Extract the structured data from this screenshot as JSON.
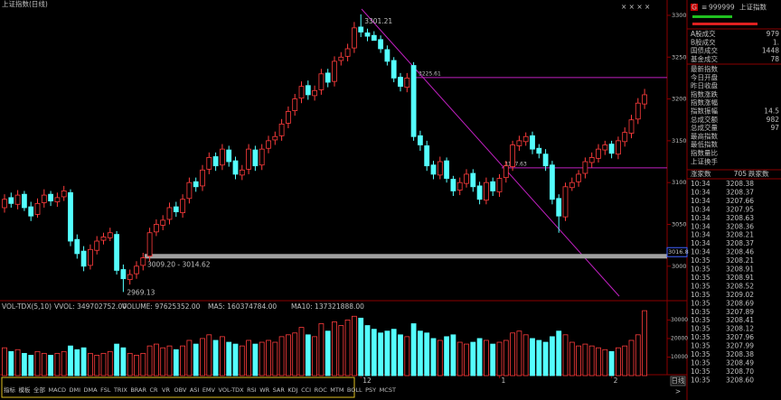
{
  "window_title": "上证指数(日线)",
  "chart_data": [
    {
      "type": "candlestick",
      "ylim": [
        2962,
        3314
      ],
      "yticks": [
        3300,
        3250,
        3200,
        3150,
        3100,
        3050,
        3000
      ],
      "categories": [
        null,
        null,
        null,
        null,
        null,
        null,
        null,
        null,
        null,
        null,
        null,
        null,
        null,
        null,
        null,
        null,
        null,
        null,
        null,
        null,
        null,
        null,
        null,
        null,
        null,
        null,
        null,
        null,
        null,
        null,
        null,
        null,
        null,
        null,
        null,
        null,
        null,
        null,
        null,
        null,
        null,
        null,
        null,
        null,
        null,
        null,
        null,
        null,
        null,
        null,
        null,
        null,
        null,
        null,
        "12",
        null,
        null,
        null,
        null,
        null,
        null,
        null,
        null,
        null,
        null,
        null,
        null,
        null,
        null,
        null,
        null,
        null,
        null,
        null,
        null,
        "1",
        null,
        null,
        null,
        null,
        null,
        null,
        null,
        null,
        null,
        null,
        null,
        null,
        null,
        null,
        null,
        null,
        "2",
        null,
        null,
        null,
        null,
        null
      ],
      "open": [
        3070,
        3082,
        3074,
        3086,
        3071,
        3062,
        3076,
        3086,
        3077,
        3083,
        3088,
        3032,
        3018,
        3001,
        3019,
        3031,
        3034,
        3038,
        2996,
        2984,
        2991,
        3001,
        3012,
        3041,
        3049,
        3056,
        3071,
        3064,
        3081,
        3101,
        3096,
        3116,
        3131,
        3121,
        3139,
        3126,
        3109,
        3116,
        3139,
        3121,
        3141,
        3151,
        3156,
        3171,
        3186,
        3201,
        3216,
        3204,
        3211,
        3231,
        3221,
        3246,
        3251,
        3261,
        3286,
        3279,
        3276,
        3271,
        3259,
        3246,
        3226,
        3214,
        3240,
        3156,
        3144,
        3121,
        3109,
        3126,
        3104,
        3091,
        3099,
        3111,
        3096,
        3079,
        3101,
        3089,
        3106,
        3119,
        3144,
        3149,
        3156,
        3141,
        3134,
        3121,
        3081,
        3059,
        3094,
        3101,
        3111,
        3124,
        3129,
        3139,
        3146,
        3134,
        3149,
        3159,
        3176,
        3194
      ],
      "high": [
        3086,
        3088,
        3091,
        3090,
        3077,
        3081,
        3092,
        3090,
        3088,
        3096,
        3092,
        3038,
        3024,
        3026,
        3036,
        3040,
        3046,
        3042,
        3002,
        2996,
        3006,
        3016,
        3046,
        3056,
        3061,
        3076,
        3077,
        3086,
        3106,
        3106,
        3121,
        3136,
        3136,
        3146,
        3144,
        3131,
        3121,
        3146,
        3144,
        3146,
        3156,
        3161,
        3176,
        3191,
        3206,
        3221,
        3222,
        3216,
        3236,
        3236,
        3251,
        3256,
        3266,
        3292,
        3301.21,
        3284,
        3281,
        3276,
        3264,
        3250,
        3231,
        3231,
        3244,
        3162,
        3150,
        3126,
        3131,
        3130,
        3108,
        3106,
        3116,
        3116,
        3101,
        3106,
        3106,
        3110,
        3126,
        3150,
        3156,
        3160,
        3161,
        3146,
        3140,
        3126,
        3086,
        3100,
        3106,
        3115,
        3130,
        3136,
        3146,
        3150,
        3150,
        3155,
        3166,
        3181,
        3201,
        3212
      ],
      "low": [
        3064,
        3070,
        3068,
        3066,
        3054,
        3058,
        3070,
        3072,
        3071,
        3078,
        3024,
        3009,
        2994,
        2996,
        3014,
        3026,
        3030,
        2990,
        2969.13,
        2978,
        2985,
        2995,
        3006,
        3036,
        3043,
        3050,
        3059,
        3058,
        3075,
        3089,
        3090,
        3110,
        3114,
        3115,
        3119,
        3104,
        3103,
        3110,
        3114,
        3115,
        3135,
        3145,
        3150,
        3165,
        3180,
        3195,
        3199,
        3198,
        3205,
        3214,
        3215,
        3240,
        3245,
        3255,
        3274,
        3269,
        3270,
        3255,
        3240,
        3220,
        3209,
        3208,
        3150,
        3138,
        3114,
        3104,
        3104,
        3100,
        3084,
        3085,
        3094,
        3089,
        3074,
        3074,
        3084,
        3083,
        3100,
        3114,
        3138,
        3144,
        3134,
        3129,
        3114,
        3074,
        3040,
        3054,
        3090,
        3095,
        3105,
        3118,
        3124,
        3133,
        3129,
        3128,
        3143,
        3153,
        3170,
        3188
      ],
      "close": [
        3080,
        3075,
        3085,
        3070,
        3060,
        3075,
        3085,
        3078,
        3082,
        3090,
        3030,
        3015,
        3000,
        3020,
        3030,
        3035,
        3040,
        2995,
        2985,
        2990,
        3000,
        3010,
        3040,
        3050,
        3055,
        3070,
        3065,
        3080,
        3100,
        3095,
        3115,
        3130,
        3120,
        3140,
        3125,
        3110,
        3115,
        3140,
        3120,
        3140,
        3150,
        3155,
        3170,
        3185,
        3200,
        3215,
        3205,
        3210,
        3230,
        3220,
        3245,
        3250,
        3260,
        3285,
        3280,
        3275,
        3270,
        3260,
        3245,
        3225,
        3215,
        3225,
        3155,
        3145,
        3120,
        3110,
        3125,
        3105,
        3090,
        3100,
        3110,
        3095,
        3080,
        3100,
        3090,
        3105,
        3120,
        3145,
        3150,
        3155,
        3140,
        3135,
        3120,
        3080,
        3060,
        3095,
        3100,
        3110,
        3125,
        3130,
        3140,
        3145,
        3135,
        3150,
        3160,
        3175,
        3195,
        3205
      ],
      "up_color": "#ff3c3c",
      "down_color": "#54ffff",
      "high_label": 3301.21,
      "low_label": 2969.13,
      "band": {
        "low": 3009.2,
        "high": 3014.62,
        "label": "3009.20 - 3014.62"
      },
      "levels": [
        3225.61,
        3117.63
      ],
      "last_marker": 3016.8
    },
    {
      "type": "bar",
      "title": "VOL-TDX(5,10)",
      "indicators": [
        "VVOL: 349702752.00",
        "VOLUME: 97625352.00",
        "MA5: 160374784.00",
        "MA10: 137321888.00"
      ],
      "ylim": [
        0,
        37000
      ],
      "yticks": [
        10000,
        20000,
        30000
      ],
      "values": [
        15000,
        13000,
        14000,
        12000,
        11000,
        13000,
        12000,
        11000,
        12000,
        13000,
        16000,
        14000,
        15000,
        12000,
        11000,
        12000,
        13000,
        17000,
        15000,
        12000,
        11000,
        12000,
        16000,
        17000,
        15000,
        16000,
        14000,
        16000,
        19000,
        17000,
        20000,
        22000,
        19000,
        21000,
        18000,
        17000,
        16000,
        19000,
        17000,
        18000,
        19000,
        18000,
        21000,
        22000,
        23000,
        26000,
        22000,
        21000,
        28000,
        24000,
        29000,
        27000,
        30000,
        32000,
        31000,
        27000,
        25000,
        23000,
        24000,
        25000,
        22000,
        21000,
        28000,
        24000,
        23000,
        20000,
        19000,
        21000,
        22000,
        18000,
        17000,
        18000,
        20000,
        19000,
        17000,
        18000,
        19000,
        23000,
        24000,
        22000,
        20000,
        19000,
        18000,
        21000,
        24000,
        22000,
        18000,
        16000,
        17000,
        16000,
        15000,
        14000,
        13000,
        15000,
        16000,
        19000,
        22000,
        35000
      ]
    }
  ],
  "quote_panel": {
    "code": "999999",
    "name": "上证指数",
    "rows_a": [
      {
        "label": "A股成交",
        "value": "979"
      },
      {
        "label": "B股成交",
        "value": "1."
      },
      {
        "label": "国债成交",
        "value": "1448"
      },
      {
        "label": "基金成交",
        "value": "78"
      }
    ],
    "rows_b": [
      {
        "label": "最新指数"
      },
      {
        "label": "今日开盘"
      },
      {
        "label": "昨日收盘"
      },
      {
        "label": "指数涨跌"
      },
      {
        "label": "指数涨幅"
      },
      {
        "label": "指数振幅",
        "value": "14.5"
      },
      {
        "label": "总成交额",
        "value": "982"
      },
      {
        "label": "总成交量",
        "value": "97"
      },
      {
        "label": "最高指数"
      },
      {
        "label": "最低指数"
      },
      {
        "label": "指数量比"
      },
      {
        "label": "上证换手"
      }
    ],
    "advance_label": "涨家数",
    "advance": "705",
    "decline_label": "跌家数",
    "ticks": [
      [
        "10:34",
        "3208.38"
      ],
      [
        "10:34",
        "3208.37"
      ],
      [
        "10:34",
        "3207.66"
      ],
      [
        "10:34",
        "3207.95"
      ],
      [
        "10:34",
        "3208.63"
      ],
      [
        "10:34",
        "3208.36"
      ],
      [
        "10:34",
        "3208.21"
      ],
      [
        "10:34",
        "3208.37"
      ],
      [
        "10:34",
        "3208.46"
      ],
      [
        "10:35",
        "3208.21"
      ],
      [
        "10:35",
        "3208.91"
      ],
      [
        "10:35",
        "3208.91"
      ],
      [
        "10:35",
        "3208.52"
      ],
      [
        "10:35",
        "3209.02"
      ],
      [
        "10:35",
        "3208.69"
      ],
      [
        "10:35",
        "3207.89"
      ],
      [
        "10:35",
        "3208.41"
      ],
      [
        "10:35",
        "3208.12"
      ],
      [
        "10:35",
        "3207.96"
      ],
      [
        "10:35",
        "3207.99"
      ],
      [
        "10:35",
        "3208.38"
      ],
      [
        "10:35",
        "3208.49"
      ],
      [
        "10:35",
        "3208.70"
      ],
      [
        "10:35",
        "3208.60"
      ]
    ]
  },
  "period_button": "日线",
  "indicator_tabs": [
    "指标",
    "模板",
    "全部",
    "MACD",
    "DMI",
    "DMA",
    "FSL",
    "TRIX",
    "BRAR",
    "CR",
    "VR",
    "OBV",
    "ASI",
    "EMV",
    "VOL-TDX",
    "RSI",
    "WR",
    "SAR",
    "KDJ",
    "CCI",
    "ROC",
    "MTM",
    "BOLL",
    "PSY",
    "MCST"
  ]
}
